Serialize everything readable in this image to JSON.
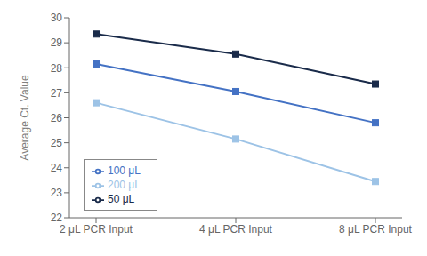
{
  "chart_data": {
    "type": "line",
    "categories": [
      "2 μL PCR Input",
      "4 μL PCR Input",
      "8 μL PCR Input"
    ],
    "series": [
      {
        "name": "50 μL",
        "color": "#1a2b4a",
        "marker": "square",
        "values": [
          29.35,
          28.55,
          27.35
        ]
      },
      {
        "name": "100 μL",
        "color": "#4472c4",
        "marker": "square",
        "values": [
          28.15,
          27.05,
          25.8
        ]
      },
      {
        "name": "200 μL",
        "color": "#9dc3e6",
        "marker": "square",
        "values": [
          26.6,
          25.15,
          23.45
        ]
      }
    ],
    "ylabel": "Average Ct. Value",
    "ylim": [
      22,
      30
    ],
    "yticks": [
      22,
      23,
      24,
      25,
      26,
      27,
      28,
      29,
      30
    ],
    "legend": "lower left",
    "grid": false
  }
}
